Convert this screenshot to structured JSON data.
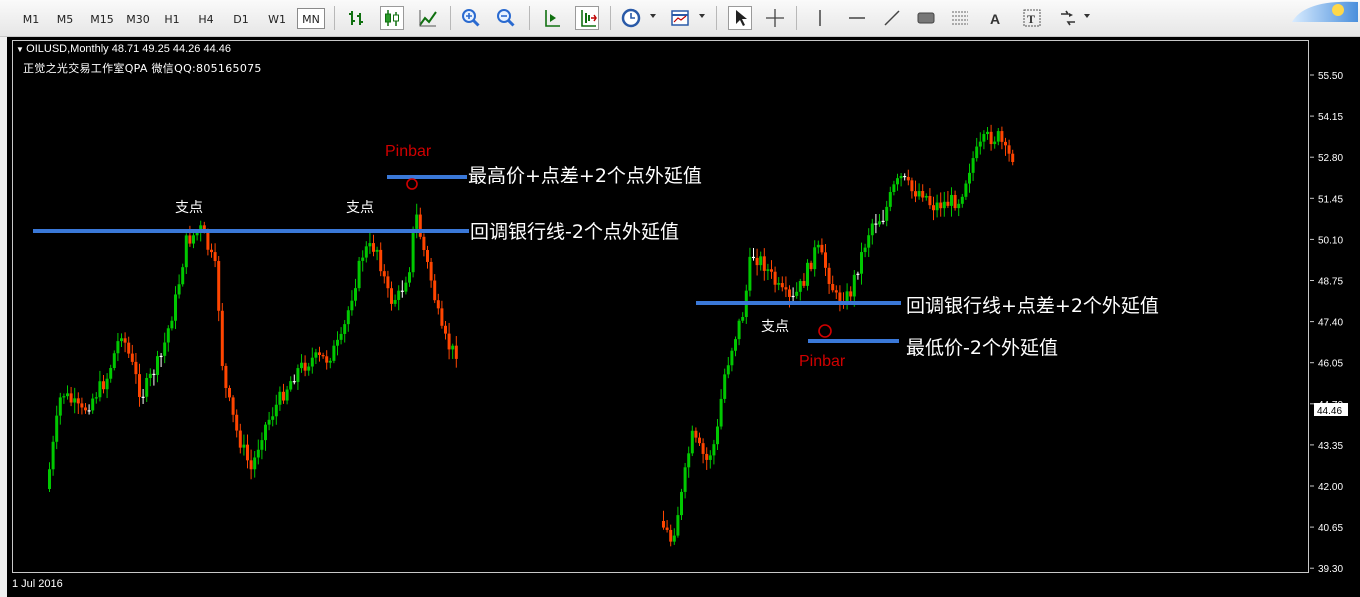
{
  "toolbar": {
    "timeframes": [
      "M1",
      "M5",
      "M15",
      "M30",
      "H1",
      "H4",
      "D1",
      "W1",
      "MN"
    ],
    "active_timeframe": "MN",
    "tools": [
      "bar-chart-icon",
      "candlestick-icon",
      "line-chart-icon",
      "zoom-in-icon",
      "zoom-out-icon",
      "chart-shift-icon",
      "autoscroll-icon",
      "periods-clock-icon",
      "templates-icon",
      "cursor-icon",
      "crosshair-icon",
      "vertical-line-icon",
      "horizontal-line-icon",
      "trendline-icon",
      "rectangle-icon",
      "fibonacci-icon",
      "text-icon",
      "text-label-icon",
      "arrows-icon"
    ],
    "active_tool": "cursor-icon"
  },
  "chart": {
    "header": {
      "symbol_line": "OILUSD,Monthly  48.71 49.25 44.26 44.46",
      "subtitle": "正觉之光交易工作室QPA 微信QQ:805165075"
    },
    "time_label": "1 Jul 2016",
    "price_ticks": [
      "55.50",
      "54.15",
      "52.80",
      "51.45",
      "50.10",
      "48.75",
      "47.40",
      "46.05",
      "44.70",
      "43.35",
      "42.00",
      "40.65",
      "39.30"
    ],
    "current_price": "44.46",
    "colors": {
      "background": "#000000",
      "bull": "#00c800",
      "bear": "#ff4500",
      "doji": "#ffffff",
      "annotation_line": "#3a78d8",
      "pinbar": "#d00000"
    },
    "annotations": {
      "pivot_1": "支点",
      "pivot_2": "支点",
      "pivot_3": "支点",
      "pinbar_top": "Pinbar",
      "pinbar_bottom": "Pinbar",
      "label_high": "最高价+点差+2个点外延值",
      "label_retrace_1": "回调银行线-2个点外延值",
      "label_retrace_2": "回调银行线+点差+2个外延值",
      "label_low": "最低价-2个外延值"
    }
  }
}
